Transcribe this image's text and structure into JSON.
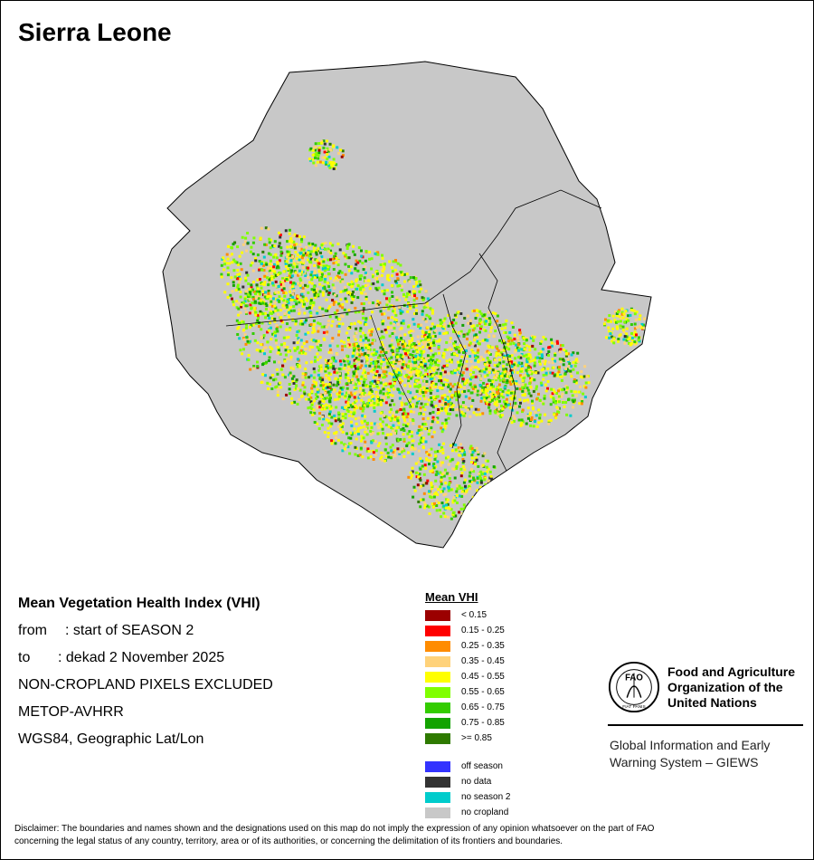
{
  "title": "Sierra Leone",
  "info": {
    "heading": "Mean Vegetation Health Index (VHI)",
    "from_label": "from",
    "from_value": ": start of SEASON 2",
    "to_label": "to",
    "to_value": ": dekad 2 November 2025",
    "line3": "NON-CROPLAND PIXELS EXCLUDED",
    "line4": "METOP-AVHRR",
    "line5": "WGS84, Geographic Lat/Lon"
  },
  "legend": {
    "title": "Mean VHI",
    "classes": [
      {
        "label": "< 0.15",
        "color": "#9b0000"
      },
      {
        "label": "0.15 - 0.25",
        "color": "#ff0000"
      },
      {
        "label": "0.25 - 0.35",
        "color": "#ff8c00"
      },
      {
        "label": "0.35 - 0.45",
        "color": "#ffd27a"
      },
      {
        "label": "0.45 - 0.55",
        "color": "#ffff00"
      },
      {
        "label": "0.55 - 0.65",
        "color": "#80ff00"
      },
      {
        "label": "0.65 - 0.75",
        "color": "#33cc00"
      },
      {
        "label": "0.75 - 0.85",
        "color": "#13a300"
      },
      {
        "label": ">= 0.85",
        "color": "#2e7a00"
      }
    ],
    "special": [
      {
        "label": "off season",
        "color": "#3333ff"
      },
      {
        "label": "no data",
        "color": "#333333"
      },
      {
        "label": "no season 2",
        "color": "#00cccc"
      },
      {
        "label": "no cropland",
        "color": "#c8c8c8"
      }
    ]
  },
  "org": {
    "logo_text": "FAO",
    "logo_motto": "FIAT PANIS",
    "name_1": "Food and Agriculture",
    "name_2": "Organization of the",
    "name_3": "United Nations",
    "giews_1": "Global Information and Early",
    "giews_2": "Warning System – GIEWS"
  },
  "disclaimer_1": "Disclaimer: The boundaries and names shown and the designations used on this map do not imply the expression of any opinion whatsoever on the part of FAO",
  "disclaimer_2": "concerning the legal status of any country, territory, area or of its authorities, or concerning the delimitation of its frontiers and boundaries.",
  "map_colors": {
    "land": "#c8c8c8",
    "boundary": "#000000"
  }
}
